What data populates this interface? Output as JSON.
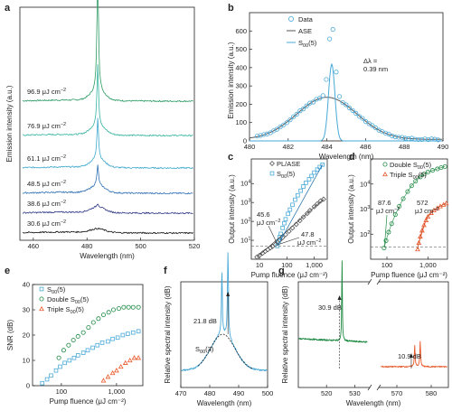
{
  "colors": {
    "green": "#2a9a62",
    "teal": "#33b49e",
    "cyan": "#3da7cc",
    "blue": "#2d6fb3",
    "navy": "#2b3585",
    "black": "#111111",
    "light_blue": "#4aa9d8",
    "orange": "#e8582a",
    "dark_green": "#1f8a43",
    "gray": "#555555"
  },
  "chart_data": [
    {
      "panel": "a",
      "type": "line",
      "xlabel": "Wavelength (nm)",
      "ylabel": "Emission intensity (a.u.)",
      "xlim": [
        455,
        520
      ],
      "xticks": [
        "460",
        "480",
        "500",
        "520"
      ],
      "peak_nm": 484,
      "series": [
        {
          "name": "96.9 μJ cm⁻²",
          "label_base": "96.9 μJ cm",
          "label_exp": "−2",
          "peak": 130,
          "broad": 10,
          "color": "green"
        },
        {
          "name": "76.9 μJ cm⁻²",
          "label_base": "76.9 μJ cm",
          "label_exp": "−2",
          "peak": 68,
          "broad": 10,
          "color": "teal"
        },
        {
          "name": "61.1 μJ cm⁻²",
          "label_base": "61.1 μJ cm",
          "label_exp": "−2",
          "peak": 46,
          "broad": 9,
          "color": "cyan"
        },
        {
          "name": "48.5 μJ cm⁻²",
          "label_base": "48.5 μJ cm",
          "label_exp": "−2",
          "peak": 22,
          "broad": 8,
          "color": "blue"
        },
        {
          "name": "38.6 μJ cm⁻²",
          "label_base": "38.6 μJ cm",
          "label_exp": "−2",
          "peak": 4,
          "broad": 6,
          "color": "navy"
        },
        {
          "name": "30.6 μJ cm⁻²",
          "label_base": "30.6 μJ cm",
          "label_exp": "−2",
          "peak": 0,
          "broad": 4,
          "color": "black"
        }
      ]
    },
    {
      "panel": "b",
      "type": "scatter",
      "xlabel": "Wavelength (nm)",
      "ylabel": "Emission intensity (a.u.)",
      "xlim": [
        480,
        490
      ],
      "ylim": [
        0,
        700
      ],
      "xticks": [
        480,
        482,
        484,
        486,
        488,
        490
      ],
      "yticks": [
        0,
        100,
        200,
        300,
        400,
        500,
        600
      ],
      "legend": [
        "Data",
        "ASE",
        "S₀₀(5)"
      ],
      "legend_parts": [
        {
          "base": "Data",
          "sub": "",
          "suffix": ""
        },
        {
          "base": "ASE",
          "sub": "",
          "suffix": ""
        },
        {
          "base": "S",
          "sub": "00",
          "suffix": "(5)"
        }
      ],
      "annotation": {
        "line1": "Δλ =",
        "line2": "0.39 nm"
      },
      "ase": {
        "center": 484,
        "height": 230,
        "sigma": 1.55
      },
      "s00": {
        "center": 484.25,
        "height": 420,
        "sigma": 0.165
      }
    },
    {
      "panel": "c",
      "type": "scatter",
      "scale": "log-log",
      "xlabel": "Pump fluence",
      "xlabel_unit": "(μJ cm⁻²)",
      "ylabel": "Output intensity (a.u.)",
      "xticks": [
        "10",
        "100",
        "1,000"
      ],
      "yticks": [
        {
          "base": "10",
          "exp": "1"
        },
        {
          "base": "10",
          "exp": "2"
        },
        {
          "base": "10",
          "exp": "3"
        },
        {
          "base": "10",
          "exp": "4"
        }
      ],
      "legend": [
        "PL/ASE",
        "S₀₀(5)"
      ],
      "legend_parts": [
        {
          "base": "PL/ASE",
          "sub": "",
          "suffix": ""
        },
        {
          "base": "S",
          "sub": "00",
          "suffix": "(5)"
        }
      ],
      "thresholds": [
        {
          "value": 45.6,
          "line1": "45.6",
          "line2": "μJ cm⁻²"
        },
        {
          "value": 47.8,
          "line1": "47.8",
          "line2": "μJ cm⁻²"
        }
      ],
      "noise_floor": 5,
      "pl_ase": {
        "x": [
          8,
          10,
          13,
          16,
          20,
          25,
          30,
          38,
          45,
          55,
          70,
          90,
          120,
          160,
          220,
          300,
          400,
          550,
          700,
          1000,
          1300,
          1700,
          2200
        ],
        "y": [
          1.3,
          1.6,
          2.1,
          2.6,
          3.2,
          4,
          4.8,
          6,
          8,
          10,
          14,
          20,
          30,
          45,
          70,
          110,
          170,
          260,
          380,
          600,
          850,
          1200,
          1500
        ]
      },
      "s00_5": {
        "x": [
          45,
          50,
          55,
          60,
          70,
          80,
          90,
          110,
          130,
          160,
          200,
          250,
          320,
          400,
          500,
          650,
          800,
          1000,
          1300,
          1600,
          2000
        ],
        "y": [
          5,
          9,
          15,
          22,
          45,
          80,
          130,
          250,
          420,
          750,
          1400,
          2400,
          4200,
          7000,
          11000,
          17000,
          25000,
          38000,
          55000,
          75000,
          100000
        ]
      }
    },
    {
      "panel": "d",
      "type": "scatter",
      "scale": "log-log",
      "xlabel": "Pump fluence",
      "xlabel_unit": "(μJ cm⁻²)",
      "ylabel": "Output intensity (a.u.)",
      "xticks": [
        "100",
        "1,000"
      ],
      "yticks": [
        {
          "base": "10",
          "exp": "2"
        },
        {
          "base": "10",
          "exp": "3"
        },
        {
          "base": "10",
          "exp": "4"
        }
      ],
      "legend": [
        "Double S₀₀(5)",
        "Triple S₀₀(5)"
      ],
      "legend_parts": [
        {
          "base": "Double S",
          "sub": "00",
          "suffix": "(5)"
        },
        {
          "base": "Triple S",
          "sub": "00",
          "suffix": "(5)"
        }
      ],
      "thresholds": [
        {
          "value": 87.6,
          "line1": "87.6",
          "line2": "μJ cm⁻²"
        },
        {
          "value": 572,
          "line1": "572",
          "line2": "μJ cm⁻²"
        }
      ],
      "noise_floor": 30,
      "double": {
        "x": [
          85,
          95,
          110,
          130,
          160,
          200,
          250,
          320,
          400,
          500,
          650,
          800,
          1000,
          1300,
          1700,
          2100,
          2600
        ],
        "y": [
          28,
          55,
          120,
          260,
          600,
          1300,
          2600,
          5000,
          8500,
          13000,
          19000,
          25000,
          30000,
          35000,
          40000,
          45000,
          50000
        ]
      },
      "triple": {
        "x": [
          560,
          600,
          650,
          720,
          800,
          900,
          1000,
          1200,
          1400,
          1700,
          2000,
          2400,
          2800
        ],
        "y": [
          25,
          45,
          80,
          140,
          230,
          360,
          500,
          700,
          900,
          1100,
          1300,
          1500,
          1700
        ]
      }
    },
    {
      "panel": "e",
      "type": "scatter",
      "scale": "log-x",
      "xlabel": "Pump fluence (μJ cm⁻²)",
      "ylabel": "SNR (dB)",
      "ylim": [
        0,
        40
      ],
      "yticks": [
        0,
        10,
        20,
        30,
        40
      ],
      "xticks": [
        "100",
        "1,000"
      ],
      "legend": [
        "S₀₀(5)",
        "Double S₀₀(5)",
        "Triple S₀₀(5)"
      ],
      "legend_parts": [
        {
          "base": "S",
          "sub": "00",
          "suffix": "(5)"
        },
        {
          "base": "Double S",
          "sub": "00",
          "suffix": "(5)"
        },
        {
          "base": "Triple S",
          "sub": "00",
          "suffix": "(5)"
        }
      ],
      "s00_5": {
        "x": [
          45,
          55,
          65,
          80,
          95,
          115,
          140,
          170,
          200,
          250,
          300,
          370,
          450,
          550,
          700,
          850,
          1050,
          1300,
          1600,
          2000,
          2500
        ],
        "y": [
          1,
          2.5,
          4,
          6,
          7.5,
          9,
          10,
          11,
          12,
          13,
          14,
          15,
          16,
          17,
          17.5,
          18.5,
          19,
          20,
          20.5,
          21,
          21.5
        ]
      },
      "double": {
        "x": [
          90,
          110,
          135,
          165,
          200,
          250,
          310,
          380,
          470,
          580,
          720,
          880,
          1100,
          1350,
          1650,
          2000,
          2500
        ],
        "y": [
          11,
          14,
          16,
          18,
          19.5,
          21,
          23,
          25,
          26.5,
          28,
          29,
          30,
          30.5,
          31,
          31,
          31,
          31
        ]
      },
      "triple": {
        "x": [
          580,
          700,
          850,
          1000,
          1200,
          1450,
          1750,
          2100,
          2500
        ],
        "y": [
          2,
          3.5,
          5,
          6,
          7.5,
          9,
          10,
          11,
          11
        ]
      }
    },
    {
      "panel": "f",
      "type": "line",
      "xlabel": "Wavelength (nm)",
      "ylabel": "Relative spectral intensity (dB)",
      "xlim": [
        470,
        500
      ],
      "xticks": [
        470,
        480,
        490,
        500
      ],
      "annotation": "21.8 dB",
      "label_parts": {
        "base": "S",
        "sub": "00",
        "suffix": "(3)"
      },
      "peaks": [
        484.2,
        486.3
      ]
    },
    {
      "panel": "g",
      "type": "line",
      "xlabel": "Wavelength (nm)",
      "ylabel": "Relative spectral intensity (dB)",
      "xticks": [
        520,
        530,
        570,
        580
      ],
      "annotations": [
        "30.9 dB",
        "10.9 dB"
      ],
      "green_peak": 525.5,
      "orange_peaks": [
        575.2,
        576.8
      ]
    }
  ]
}
